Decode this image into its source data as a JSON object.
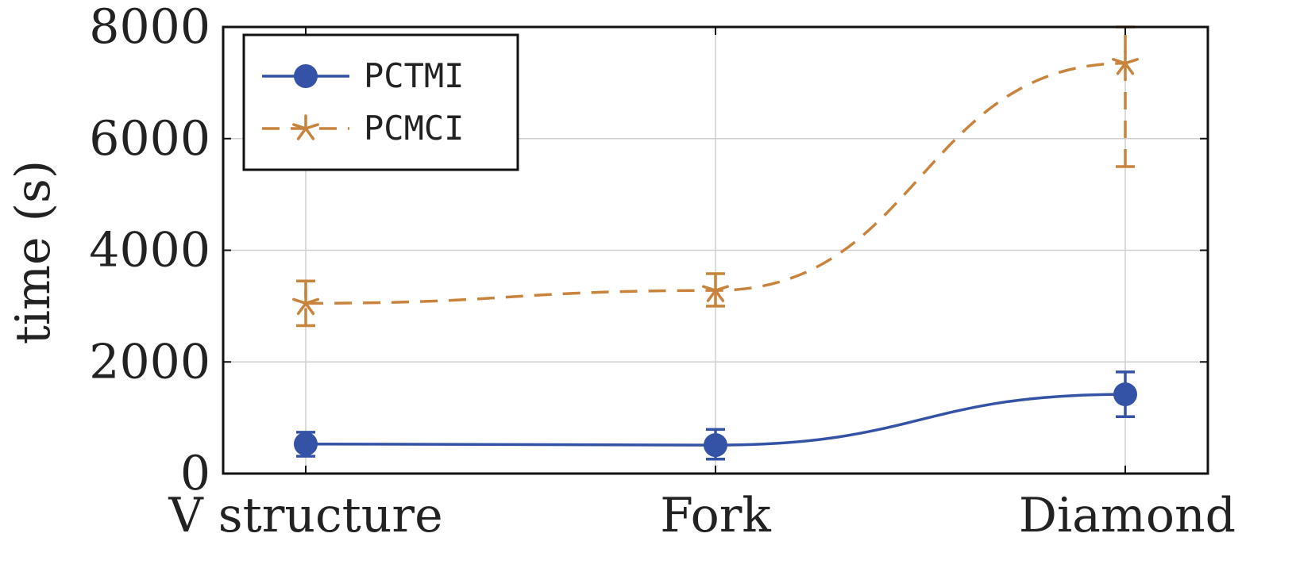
{
  "chart_data": {
    "type": "line",
    "title": "",
    "xlabel": "",
    "ylabel": "time (s)",
    "categories": [
      "V structure",
      "Fork",
      "Diamond"
    ],
    "ylim": [
      0,
      8000
    ],
    "yticks": [
      "0",
      "2000",
      "4000",
      "6000",
      "8000"
    ],
    "grid": true,
    "legend_position": "top-left",
    "series": [
      {
        "name": "PCTMI",
        "values": [
          530,
          510,
          1420
        ],
        "error_low": [
          310,
          260,
          1020
        ],
        "error_high": [
          740,
          790,
          1820
        ],
        "color": "#3452a6",
        "line_style": "solid",
        "marker": "circle"
      },
      {
        "name": "PCMCI",
        "values": [
          3050,
          3280,
          7350
        ],
        "error_low": [
          2650,
          3000,
          5500
        ],
        "error_high": [
          3450,
          3580,
          8000
        ],
        "color": "#c8843c",
        "line_style": "dashed",
        "marker": "asterisk"
      }
    ]
  }
}
